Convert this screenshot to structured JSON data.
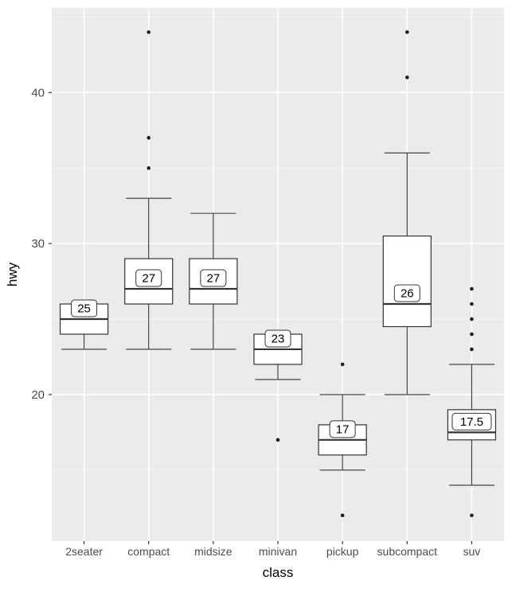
{
  "figure": {
    "background": "#FFFFFF"
  },
  "chart_data": {
    "type": "boxplot",
    "title": "",
    "xlabel": "class",
    "ylabel": "hwy",
    "categories": [
      "2seater",
      "compact",
      "midsize",
      "minivan",
      "pickup",
      "subcompact",
      "suv"
    ],
    "ylim": [
      10.3,
      45.6
    ],
    "yticks": [
      20,
      30,
      40
    ],
    "yticks_minor": [
      15,
      25,
      35,
      45
    ],
    "grid": "on",
    "legend": "none",
    "boxes": [
      {
        "category": "2seater",
        "lower_whisker": 23,
        "q1": 24,
        "median": 25,
        "q3": 26,
        "upper_whisker": 26,
        "outliers": [],
        "label": "25"
      },
      {
        "category": "compact",
        "lower_whisker": 23,
        "q1": 26,
        "median": 27,
        "q3": 29,
        "upper_whisker": 33,
        "outliers": [
          35,
          37,
          44
        ],
        "label": "27"
      },
      {
        "category": "midsize",
        "lower_whisker": 23,
        "q1": 26,
        "median": 27,
        "q3": 29,
        "upper_whisker": 32,
        "outliers": [],
        "label": "27"
      },
      {
        "category": "minivan",
        "lower_whisker": 21,
        "q1": 22,
        "median": 23,
        "q3": 24,
        "upper_whisker": 24,
        "outliers": [
          17
        ],
        "label": "23"
      },
      {
        "category": "pickup",
        "lower_whisker": 15,
        "q1": 16,
        "median": 17,
        "q3": 18,
        "upper_whisker": 20,
        "outliers": [
          12,
          22
        ],
        "label": "17"
      },
      {
        "category": "subcompact",
        "lower_whisker": 20,
        "q1": 24.5,
        "median": 26,
        "q3": 30.5,
        "upper_whisker": 36,
        "outliers": [
          41,
          44
        ],
        "label": "26"
      },
      {
        "category": "suv",
        "lower_whisker": 14,
        "q1": 17,
        "median": 17.5,
        "q3": 19,
        "upper_whisker": 22,
        "outliers": [
          12,
          23,
          24,
          25,
          26,
          27
        ],
        "label": "17.5"
      }
    ],
    "style": {
      "panel_bg": "#EBEBEB",
      "grid_major_color": "#FFFFFF",
      "grid_minor_color": "#F5F5F5",
      "tick_color": "#333333",
      "axis_text_color": "#4D4D4D",
      "axis_title_color": "#000000",
      "box_fill": "#FFFFFF",
      "box_stroke": "#333333",
      "point_color": "#1F1F1F",
      "label_fill": "#FFFFFF",
      "label_stroke": "#333333",
      "label_text_color": "#000000"
    }
  }
}
